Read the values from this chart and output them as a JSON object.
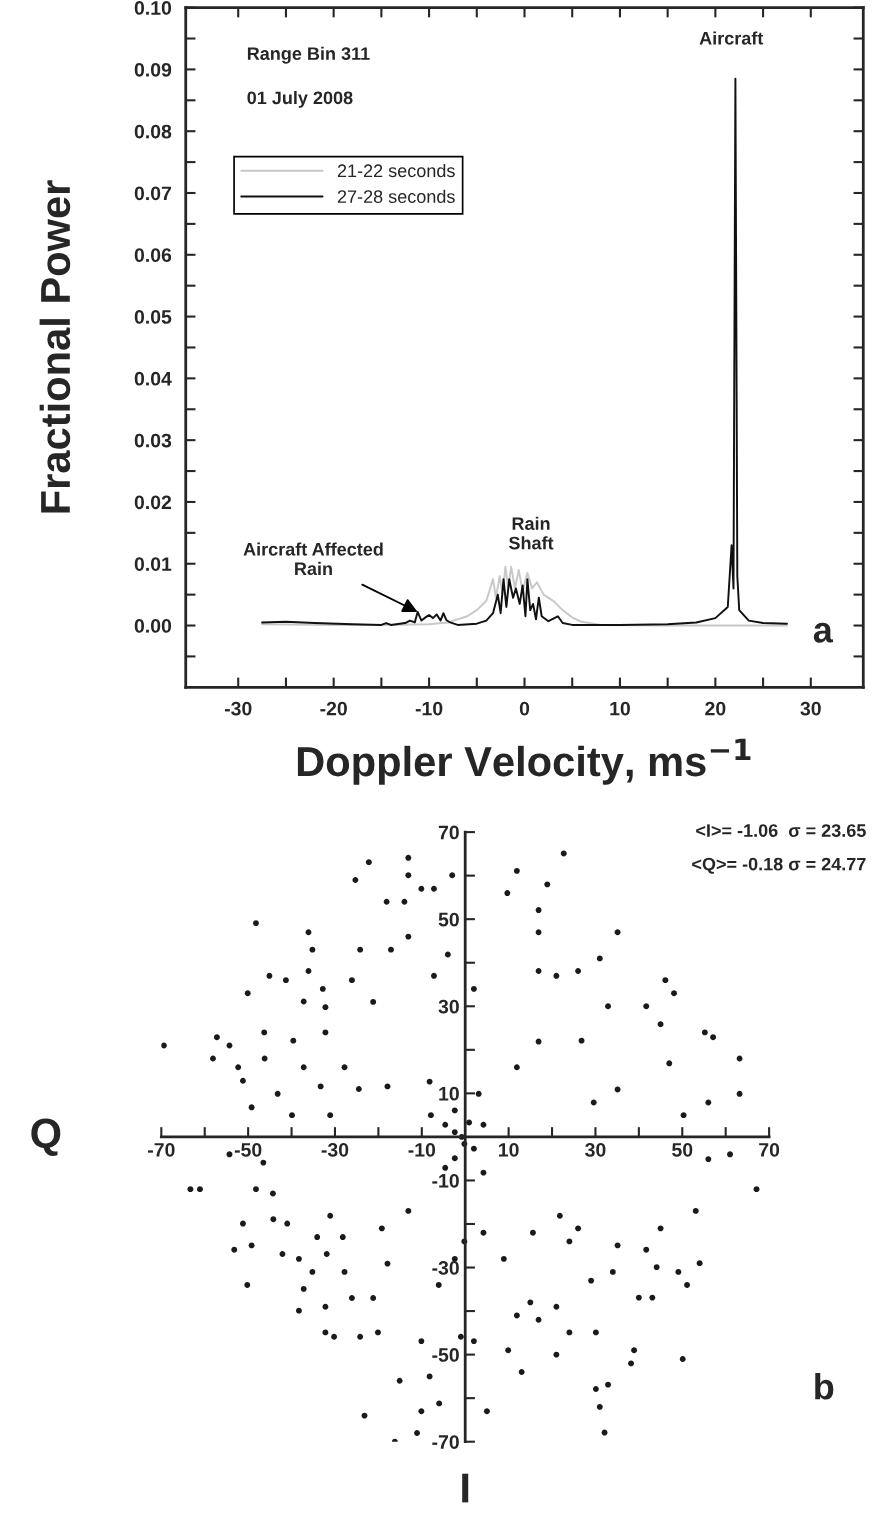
{
  "chart_data": [
    {
      "type": "line",
      "xlabel": "Doppler Velocity, ms$^{−1}$",
      "ylabel": "Fractional Power",
      "xlim": [
        -35.5,
        35.5
      ],
      "ylim": [
        -0.01,
        0.1
      ],
      "xticks": [
        -30,
        {
          "value": -25,
          "label": null
        },
        -20,
        {
          "value": -15,
          "label": null
        },
        -10,
        {
          "value": -5,
          "label": null
        },
        0,
        {
          "value": 5,
          "label": null
        },
        10,
        {
          "value": 15,
          "label": null
        },
        20,
        {
          "value": 25,
          "label": null
        },
        30
      ],
      "yticks": [
        {
          "value": -0.005,
          "label": null
        },
        {
          "value": 0,
          "label": "0.00"
        },
        {
          "value": 0.005,
          "label": null
        },
        {
          "value": 0.01,
          "label": "0.01"
        },
        {
          "value": 0.015,
          "label": null
        },
        {
          "value": 0.02,
          "label": "0.02"
        },
        {
          "value": 0.025,
          "label": null
        },
        {
          "value": 0.03,
          "label": "0.03"
        },
        {
          "value": 0.035,
          "label": null
        },
        {
          "value": 0.04,
          "label": "0.04"
        },
        {
          "value": 0.045,
          "label": null
        },
        {
          "value": 0.05,
          "label": "0.05"
        },
        {
          "value": 0.055,
          "label": null
        },
        {
          "value": 0.06,
          "label": "0.06"
        },
        {
          "value": 0.065,
          "label": null
        },
        {
          "value": 0.07,
          "label": "0.07"
        },
        {
          "value": 0.075,
          "label": null
        },
        {
          "value": 0.08,
          "label": "0.08"
        },
        {
          "value": 0.085,
          "label": null
        },
        {
          "value": 0.09,
          "label": "0.09"
        },
        {
          "value": 0.095,
          "label": null
        },
        {
          "value": 0.1,
          "label": "0.10"
        }
      ],
      "legend": "top left",
      "grid": false,
      "series": [
        {
          "name": "21-22 seconds",
          "color": "#c8c8c8",
          "x": [
            -27.5,
            -20,
            -15,
            -10,
            -8,
            -6,
            -5,
            -4,
            -3.3,
            -3,
            -2.6,
            -2.3,
            -2,
            -1.7,
            -1.4,
            -1,
            -0.6,
            -0.2,
            0.3,
            0.8,
            1.3,
            2,
            3,
            4,
            5,
            6,
            8,
            15,
            20,
            27.5
          ],
          "values": [
            0.0002,
            0.0001,
            0.0001,
            0.0002,
            0.0005,
            0.0015,
            0.0025,
            0.004,
            0.0075,
            0.0045,
            0.008,
            0.005,
            0.0095,
            0.006,
            0.0095,
            0.006,
            0.009,
            0.0055,
            0.0085,
            0.006,
            0.007,
            0.005,
            0.004,
            0.0025,
            0.0013,
            0.0006,
            0.0001,
            0,
            0,
            0
          ]
        },
        {
          "name": "27-28 seconds",
          "color": "#111111",
          "x": [
            -27.5,
            -25,
            -22,
            -18,
            -15,
            -14.5,
            -14,
            -12.5,
            -12,
            -11.5,
            -11.2,
            -10.8,
            -10.3,
            -10,
            -9.6,
            -9.2,
            -8.8,
            -8.5,
            -8.2,
            -7.8,
            -7,
            -5,
            -4,
            -3.3,
            -2.8,
            -2.5,
            -2.2,
            -1.9,
            -1.6,
            -1.2,
            -0.9,
            -0.5,
            -0.2,
            0.1,
            0.3,
            0.6,
            0.9,
            1.2,
            1.5,
            1.8,
            2.5,
            3.5,
            4,
            5,
            10,
            15,
            18,
            20,
            21.3,
            21.7,
            21.9,
            22.1,
            22.3,
            22.5,
            23.5,
            25,
            27.5
          ],
          "values": [
            0.0005,
            0.0006,
            0.0004,
            0.0002,
            0.0001,
            0.0004,
            0.0001,
            0.0004,
            0.0008,
            0.0005,
            0.0022,
            0.0008,
            0.0014,
            0.0017,
            0.0012,
            0.0018,
            0.0008,
            0.002,
            0.0009,
            0.0005,
            0.0001,
            0.0003,
            0.0008,
            0.002,
            0.005,
            0.002,
            0.0075,
            0.003,
            0.0075,
            0.0045,
            0.006,
            0.0035,
            0.0065,
            0.0015,
            0.0075,
            0.0025,
            0.0035,
            0.001,
            0.0045,
            0.0015,
            0.0007,
            0.0015,
            0.0004,
            0.0001,
            0.0001,
            0.0002,
            0.0005,
            0.0012,
            0.003,
            0.013,
            0.006,
            0.0885,
            0.008,
            0.0025,
            0.0008,
            0.0004,
            0.0003
          ]
        }
      ],
      "annotations": [
        "Range Bin 311",
        "01 July 2008",
        {
          "text": "Aircraft",
          "x": 22.1,
          "y": 0.0885
        },
        {
          "text": "Rain\nShaft",
          "x": -1.5,
          "y": 0.0095
        },
        {
          "text": "Aircraft Affected\nRain",
          "x": -11.2,
          "y": 0.0022
        },
        "a"
      ]
    },
    {
      "type": "scatter",
      "xlabel": "I",
      "ylabel": "Q",
      "xlim": [
        -70,
        70
      ],
      "ylim": [
        -70,
        70
      ],
      "marker": "circle",
      "grid": false,
      "xticks": [
        -70,
        {
          "value": -60,
          "label": null
        },
        -50,
        {
          "value": -40,
          "label": null
        },
        -30,
        {
          "value": -20,
          "label": null
        },
        -10,
        10,
        {
          "value": 20,
          "label": null
        },
        30,
        {
          "value": 40,
          "label": null
        },
        50,
        {
          "value": 60,
          "label": null
        },
        70
      ],
      "yticks": [
        -70,
        {
          "value": -60,
          "label": null
        },
        -50,
        {
          "value": -40,
          "label": null
        },
        -30,
        {
          "value": -20,
          "label": null
        },
        -10,
        10,
        {
          "value": 20,
          "label": null
        },
        30,
        {
          "value": 40,
          "label": null
        },
        50,
        {
          "value": 60,
          "label": null
        },
        70
      ],
      "series": [
        {
          "color": "#1a1a1a",
          "x": [
            -69.4,
            -58.1,
            -57.2,
            -54.3,
            -52.3,
            -51.2,
            -50.1,
            -49.2,
            -48.2,
            -46.3,
            -46.2,
            -45.1,
            -41.3,
            -36.1,
            -35.2,
            -36.1,
            -37.2,
            -39.6,
            -37.2,
            -32.8,
            -32.2,
            -32.2,
            -26.1,
            -25.3,
            -24.2,
            -22.2,
            -21.2,
            -18.1,
            -17.1,
            -14.0,
            -13.1,
            -13.1,
            -13.1,
            -10.1,
            -7.2,
            -3.0,
            -4.0,
            -7.2,
            2.0,
            9.7,
            11.9,
            16.9,
            18.9,
            16.9,
            22.7,
            16.9,
            21.0,
            26.0,
            31.0,
            35.1,
            32.9,
            46.1,
            48.1,
            45.0,
            41.7,
            55.2,
            57.1,
            63.2,
            63.2,
            56.0,
            50.3,
            47.0,
            35.1,
            29.6,
            26.8,
            16.9,
            11.9,
            3.1,
            -2.4,
            -8.2,
            -17.9,
            -24.5,
            -27.8,
            -33.3,
            -31.1,
            -39.9,
            -43.2,
            -0.8,
            -2.4,
            0.9,
            -4.6,
            4.2,
            -7.9,
            -63.3,
            -53.2,
            -51.2,
            -50.2,
            -49.2,
            -44.2,
            -42.1,
            -38.3,
            -38.3,
            -37.2,
            -32.2,
            -30.2,
            -32.2,
            -34.1,
            -31.1,
            -28.2,
            -26.1,
            -24.2,
            -23.2,
            -21.2,
            -20.1,
            -19.2,
            -16.2,
            -15.1,
            -13.1,
            -10.1,
            -11.1,
            -10.1,
            -8.2,
            -6.0,
            -6.1,
            -1.0,
            2.0,
            5.0,
            9.9,
            13.0,
            11.9,
            15.0,
            16.9,
            21.0,
            24.0,
            21.0,
            30.1,
            30.1,
            31.0,
            32.1,
            32.9,
            38.9,
            38.2,
            43.1,
            40.0,
            50.1,
            49.1,
            51.1,
            54.0,
            53.1,
            67.1,
            61.0,
            56.0,
            45.0,
            41.7,
            44.1,
            35.1,
            34.0,
            29.0,
            26.0,
            24.0,
            21.8,
            15.6,
            8.9,
            4.2,
            -0.2,
            -2.4,
            -17.9,
            -27.8,
            -31.9,
            -35.2,
            -41.0,
            -44.3,
            -48.2,
            -46.5,
            -54.3,
            -61.1,
            -0.2,
            -2.4,
            2.0,
            -4.6,
            4.2
          ],
          "values": [
            21.0,
            18.0,
            22.9,
            21.0,
            16.0,
            12.9,
            33.0,
            6.8,
            49.1,
            24.0,
            18.0,
            37.0,
            36.0,
            47.0,
            43.0,
            38.1,
            31.1,
            22.1,
            16.0,
            34.0,
            29.8,
            24.0,
            36.0,
            59.0,
            43.0,
            63.1,
            31.0,
            54.0,
            43.0,
            54.0,
            64.1,
            60.1,
            46.0,
            57.0,
            57.0,
            60.1,
            41.9,
            37.0,
            34.0,
            56.0,
            61.1,
            52.1,
            58.0,
            47.0,
            65.1,
            38.1,
            37.0,
            38.1,
            41.0,
            47.0,
            30.0,
            36.0,
            33.0,
            25.9,
            30.0,
            24.0,
            22.9,
            18.0,
            9.9,
            7.9,
            5.0,
            16.9,
            10.9,
            7.9,
            22.1,
            21.9,
            16.0,
            9.9,
            6.1,
            12.7,
            11.6,
            11.0,
            16.0,
            11.6,
            5.0,
            5.0,
            9.9,
            0.0,
            1.1,
            3.3,
            2.8,
            2.8,
            5.0,
            -12.0,
            -25.9,
            -19.9,
            -34.0,
            -24.9,
            -18.9,
            -26.9,
            -28.0,
            -39.9,
            -34.9,
            -44.9,
            -45.9,
            -39.0,
            -23.0,
            -18.1,
            -23.0,
            -37.0,
            -45.9,
            -64.0,
            -37.0,
            -44.9,
            -21.0,
            -70.0,
            -56.0,
            -17.0,
            -46.9,
            -68.0,
            -63.0,
            -55.0,
            -61.2,
            -34.0,
            -45.9,
            -46.9,
            -63.0,
            -49.0,
            -54.0,
            -41.0,
            -38.0,
            -42.0,
            -50.0,
            -44.9,
            -39.0,
            -44.9,
            -57.9,
            -62.0,
            -67.9,
            -56.9,
            -49.0,
            -52.0,
            -36.9,
            -36.9,
            -51.0,
            -31.0,
            -34.0,
            -29.0,
            -17.0,
            -12.0,
            -4.0,
            -5.1,
            -21.0,
            -25.9,
            -29.9,
            -24.9,
            -31.0,
            -33.0,
            -21.0,
            -24.0,
            -18.1,
            -22.0,
            -28.0,
            -22.0,
            -24.0,
            -28.0,
            -29.1,
            -31.0,
            -26.9,
            -31.0,
            -19.9,
            -13.0,
            -12.0,
            -5.9,
            -4.0,
            -12.0,
            -1.6,
            -4.9,
            -2.7,
            -7.1,
            -8.2
          ]
        }
      ],
      "annotations": [
        "<I>= -1.06  σ = 23.65",
        "<Q>= -0.18 σ = 24.77",
        "b"
      ]
    }
  ]
}
